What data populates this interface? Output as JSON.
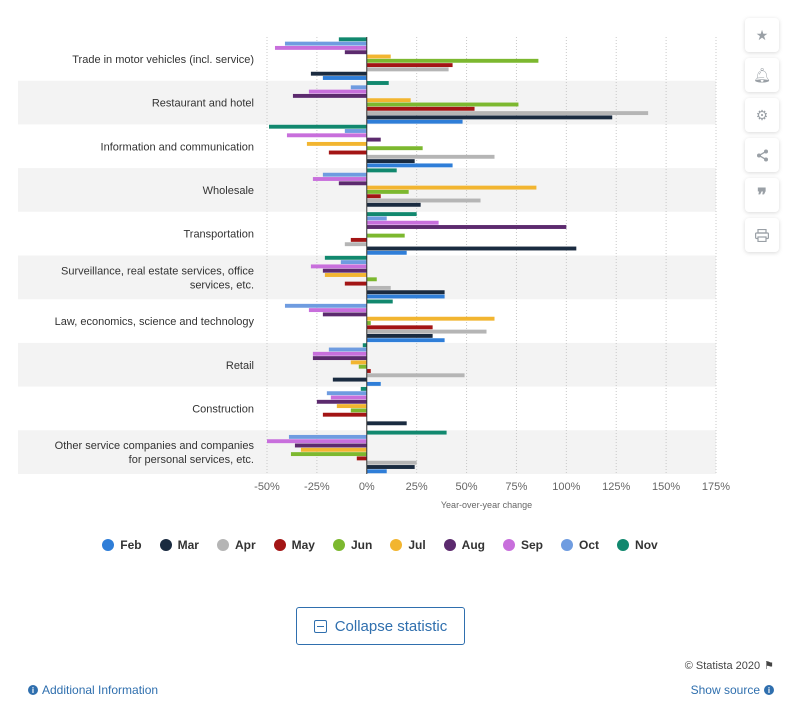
{
  "chart_data": {
    "type": "bar",
    "orientation": "horizontal",
    "categories": [
      [
        "Trade in motor vehicles (incl. service)"
      ],
      [
        "Restaurant and hotel"
      ],
      [
        "Information and communication"
      ],
      [
        "Wholesale"
      ],
      [
        "Transportation"
      ],
      [
        "Surveillance, real estate services, office",
        "services, etc."
      ],
      [
        "Law, economics, science and technology"
      ],
      [
        "Retail"
      ],
      [
        "Construction"
      ],
      [
        "Other service companies and companies",
        "for personal services, etc."
      ]
    ],
    "series": [
      {
        "name": "Feb",
        "color": "#2f7ed8",
        "values": [
          -22,
          48,
          43,
          0,
          20,
          39,
          39,
          7,
          0,
          10
        ]
      },
      {
        "name": "Mar",
        "color": "#1a2b40",
        "values": [
          -28,
          123,
          24,
          27,
          105,
          39,
          33,
          -17,
          20,
          24
        ]
      },
      {
        "name": "Apr",
        "color": "#b5b5b5",
        "values": [
          41,
          141,
          64,
          57,
          -11,
          12,
          60,
          49,
          0,
          25
        ]
      },
      {
        "name": "May",
        "color": "#a31515",
        "values": [
          43,
          54,
          -19,
          7,
          -8,
          -11,
          33,
          2,
          -22,
          -5
        ]
      },
      {
        "name": "Jun",
        "color": "#7cb82f",
        "values": [
          86,
          76,
          28,
          21,
          19,
          5,
          2,
          -4,
          -8,
          -38
        ]
      },
      {
        "name": "Jul",
        "color": "#f2b530",
        "values": [
          12,
          22,
          -30,
          85,
          0,
          -21,
          64,
          -8,
          -15,
          -33
        ]
      },
      {
        "name": "Aug",
        "color": "#5c2a6e",
        "values": [
          -11,
          -37,
          7,
          -14,
          100,
          -22,
          -22,
          -27,
          -25,
          -36
        ]
      },
      {
        "name": "Sep",
        "color": "#c86fdc",
        "values": [
          -46,
          -29,
          -40,
          -27,
          36,
          -28,
          -29,
          -27,
          -18,
          -50
        ]
      },
      {
        "name": "Oct",
        "color": "#6f9ce0",
        "values": [
          -41,
          -8,
          -11,
          -22,
          10,
          -13,
          -41,
          -19,
          -20,
          -39
        ]
      },
      {
        "name": "Nov",
        "color": "#11886e",
        "values": [
          -14,
          11,
          -49,
          15,
          25,
          -21,
          13,
          -2,
          -3,
          40
        ]
      }
    ],
    "xlabel": "Year-over-year change",
    "ylabel": "",
    "xlim": [
      -50,
      175
    ],
    "xticks": [
      -50,
      -25,
      0,
      25,
      50,
      75,
      100,
      125,
      150,
      175
    ],
    "xtick_labels": [
      "-50%",
      "-25%",
      "0%",
      "25%",
      "50%",
      "75%",
      "100%",
      "125%",
      "150%",
      "175%"
    ],
    "grid": true,
    "legend_position": "bottom"
  },
  "ui": {
    "collapse_label": "Collapse statistic",
    "credit": "© Statista 2020",
    "additional_info": "Additional Information",
    "show_source": "Show source",
    "side_buttons": [
      "star-icon",
      "bell-icon",
      "gear-icon",
      "share-icon",
      "quote-icon",
      "print-icon"
    ]
  }
}
